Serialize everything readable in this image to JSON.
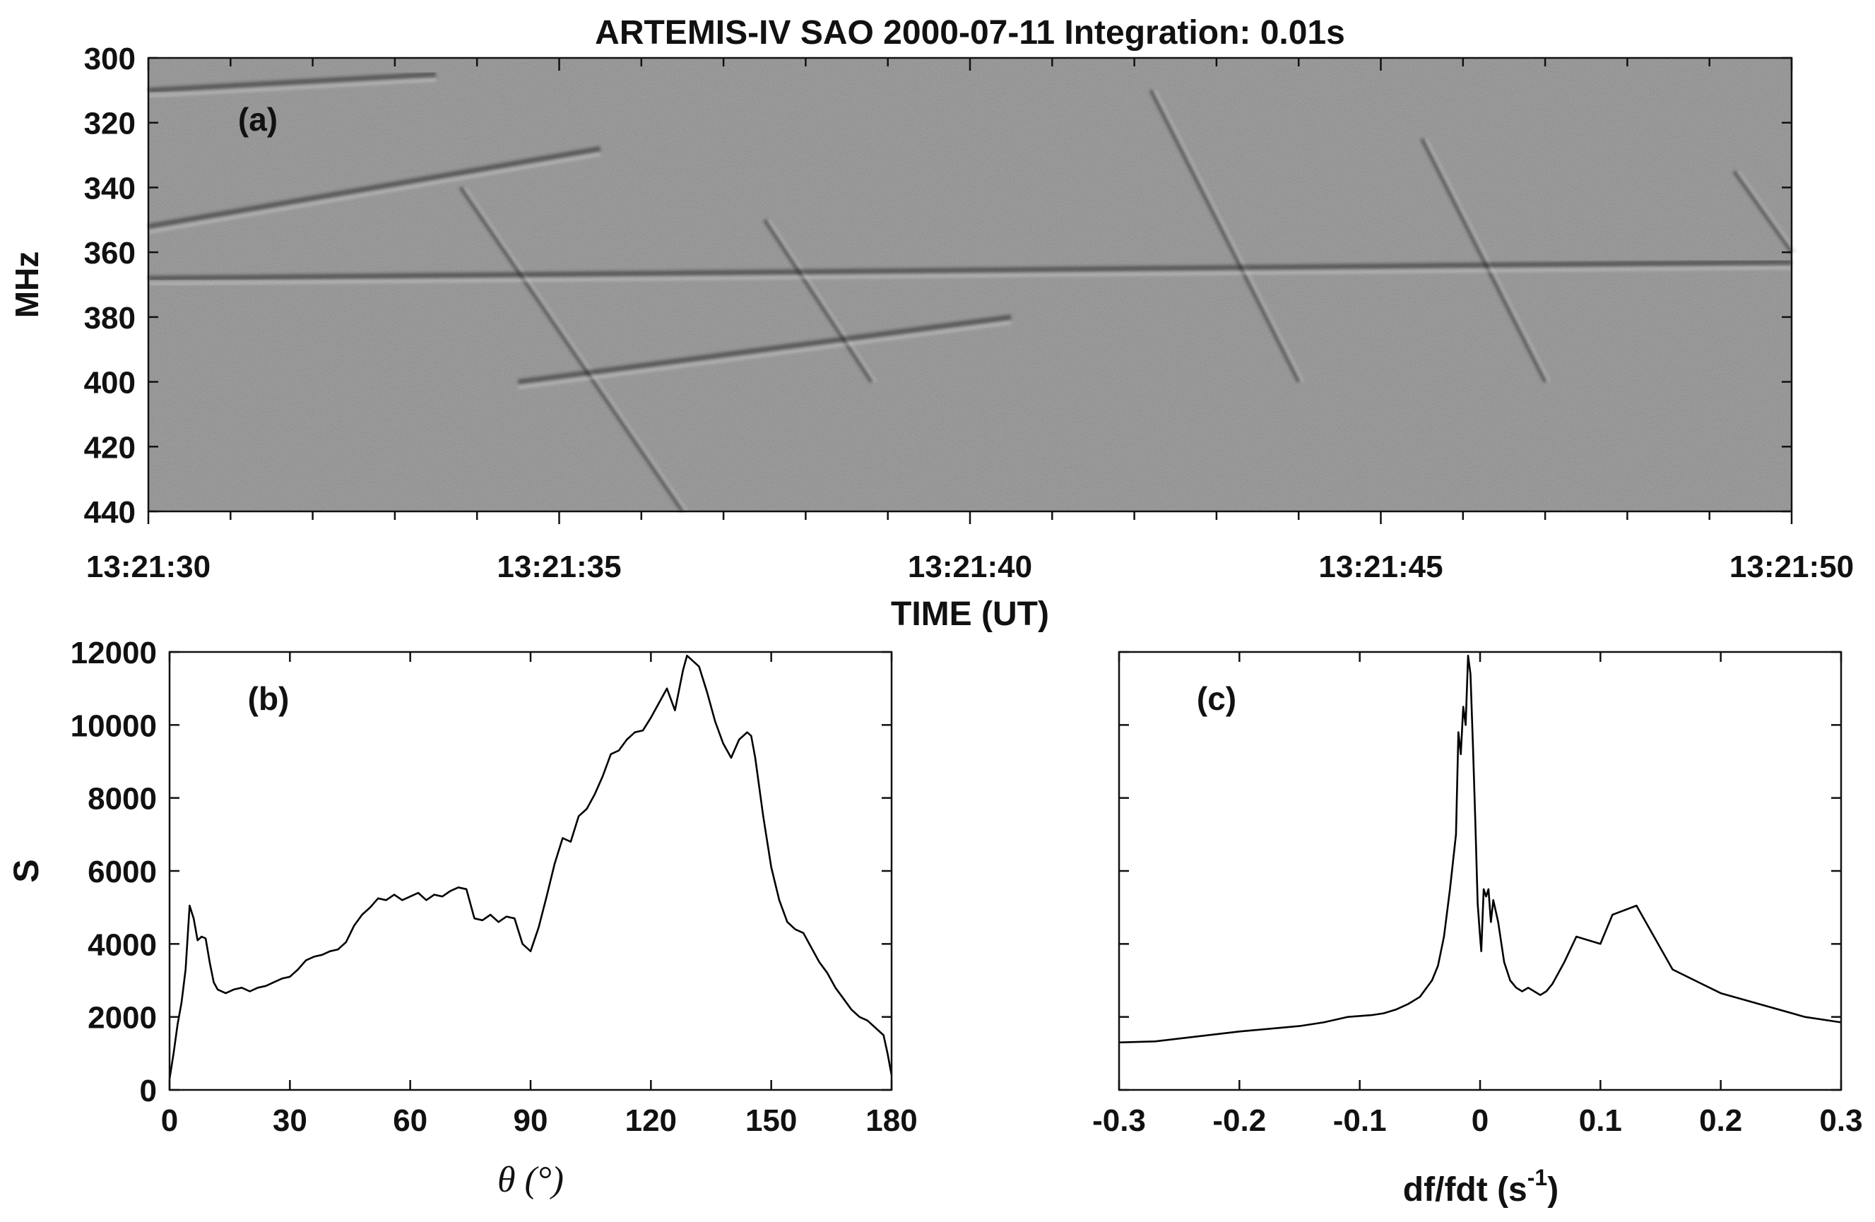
{
  "colors": {
    "axis": "#111111",
    "line": "#000000",
    "spectrogram_bg": "#8c8c8c"
  },
  "chart_data": [
    {
      "panel": "(a)",
      "type": "heatmap",
      "title": "ARTEMIS-IV  SAO 2000-07-11   Integration: 0.01s",
      "xlabel": "TIME (UT)",
      "ylabel": "MHz",
      "x_ticks": [
        "13:21:30",
        "13:21:35",
        "13:21:40",
        "13:21:45",
        "13:21:50"
      ],
      "y_ticks": [
        "300",
        "320",
        "340",
        "360",
        "380",
        "400",
        "420",
        "440"
      ],
      "xlim": [
        "13:21:30",
        "13:21:50"
      ],
      "ylim": [
        440,
        300
      ],
      "colormap": "gray",
      "features": [
        {
          "kind": "drift",
          "t_start": 3.8,
          "f_start": 340,
          "t_end": 6.5,
          "f_end": 440
        },
        {
          "kind": "drift",
          "t_start": 7.5,
          "f_start": 350,
          "t_end": 8.8,
          "f_end": 400
        },
        {
          "kind": "drift",
          "t_start": 12.2,
          "f_start": 310,
          "t_end": 14.0,
          "f_end": 400
        },
        {
          "kind": "drift",
          "t_start": 15.5,
          "f_start": 325,
          "t_end": 17.0,
          "f_end": 400
        },
        {
          "kind": "drift",
          "t_start": 19.3,
          "f_start": 335,
          "t_end": 20.0,
          "f_end": 360
        },
        {
          "kind": "lane",
          "t_start": 0.0,
          "f_start": 368,
          "t_end": 20.0,
          "f_end": 363
        },
        {
          "kind": "lane",
          "t_start": 0.0,
          "f_start": 352,
          "t_end": 5.5,
          "f_end": 328
        },
        {
          "kind": "lane",
          "t_start": 4.5,
          "f_start": 400,
          "t_end": 10.5,
          "f_end": 380
        },
        {
          "kind": "lane",
          "t_start": 0.0,
          "f_start": 310,
          "t_end": 3.5,
          "f_end": 305
        }
      ],
      "grid": false
    },
    {
      "panel": "(b)",
      "type": "line",
      "xlabel": "θ (°)",
      "ylabel": "S",
      "x_ticks": [
        "0",
        "30",
        "60",
        "90",
        "120",
        "150",
        "180"
      ],
      "y_ticks": [
        "0",
        "2000",
        "4000",
        "6000",
        "8000",
        "10000",
        "12000"
      ],
      "xlim": [
        0,
        180
      ],
      "ylim": [
        0,
        12000
      ],
      "series": [
        {
          "x": [
            0,
            1,
            2,
            3,
            4,
            5,
            6,
            7,
            8,
            9,
            10,
            11,
            12,
            14,
            16,
            18,
            20,
            22,
            24,
            26,
            28,
            30,
            32,
            34,
            36,
            38,
            40,
            42,
            44,
            46,
            48,
            50,
            52,
            54,
            56,
            58,
            60,
            62,
            64,
            66,
            68,
            70,
            72,
            74,
            76,
            78,
            80,
            82,
            84,
            86,
            88,
            90,
            92,
            94,
            96,
            98,
            100,
            102,
            104,
            106,
            108,
            110,
            112,
            114,
            116,
            118,
            120,
            122,
            124,
            126,
            128,
            129,
            130,
            132,
            134,
            136,
            138,
            140,
            142,
            144,
            145,
            146,
            148,
            150,
            152,
            154,
            156,
            158,
            160,
            162,
            164,
            166,
            168,
            170,
            172,
            174,
            176,
            178,
            179,
            180
          ],
          "y": [
            300,
            1000,
            1800,
            2400,
            3300,
            5050,
            4700,
            4100,
            4200,
            4150,
            3500,
            2950,
            2750,
            2650,
            2750,
            2800,
            2700,
            2800,
            2850,
            2950,
            3050,
            3100,
            3300,
            3550,
            3650,
            3700,
            3800,
            3850,
            4050,
            4500,
            4800,
            5000,
            5250,
            5200,
            5350,
            5200,
            5300,
            5400,
            5200,
            5350,
            5300,
            5450,
            5550,
            5500,
            4700,
            4650,
            4800,
            4600,
            4750,
            4700,
            4000,
            3800,
            4450,
            5300,
            6200,
            6900,
            6800,
            7500,
            7700,
            8100,
            8600,
            9200,
            9300,
            9600,
            9800,
            9850,
            10200,
            10600,
            11000,
            10400,
            11500,
            11900,
            11800,
            11600,
            10900,
            10100,
            9500,
            9100,
            9600,
            9800,
            9700,
            9100,
            7500,
            6100,
            5200,
            4600,
            4400,
            4300,
            3900,
            3500,
            3200,
            2800,
            2500,
            2200,
            2000,
            1900,
            1700,
            1500,
            1000,
            400
          ]
        }
      ],
      "grid": false
    },
    {
      "panel": "(c)",
      "type": "line",
      "xlabel": "df/fdt (s",
      "xlabel_superscript": "-1",
      "xlabel_suffix": ")",
      "ylabel": "",
      "x_ticks": [
        "-0.3",
        "-0.2",
        "-0.1",
        "0",
        "0.1",
        "0.2",
        "0.3"
      ],
      "xlim": [
        -0.3,
        0.3
      ],
      "ylim": [
        0,
        12000
      ],
      "series": [
        {
          "x": [
            -0.3,
            -0.27,
            -0.2,
            -0.15,
            -0.13,
            -0.11,
            -0.09,
            -0.08,
            -0.07,
            -0.06,
            -0.05,
            -0.04,
            -0.035,
            -0.03,
            -0.025,
            -0.02,
            -0.018,
            -0.016,
            -0.014,
            -0.012,
            -0.01,
            -0.008,
            -0.006,
            -0.004,
            -0.002,
            0,
            0.001,
            0.003,
            0.005,
            0.007,
            0.009,
            0.011,
            0.015,
            0.02,
            0.025,
            0.03,
            0.035,
            0.04,
            0.045,
            0.05,
            0.055,
            0.06,
            0.07,
            0.08,
            0.1,
            0.11,
            0.13,
            0.16,
            0.2,
            0.27,
            0.3
          ],
          "y": [
            1300,
            1330,
            1600,
            1750,
            1850,
            2000,
            2050,
            2100,
            2200,
            2350,
            2550,
            3000,
            3400,
            4200,
            5500,
            7000,
            9800,
            9200,
            10500,
            10000,
            11900,
            11400,
            9500,
            7400,
            5100,
            4200,
            3800,
            5500,
            5300,
            5500,
            4600,
            5200,
            4600,
            3500,
            3000,
            2800,
            2700,
            2800,
            2700,
            2600,
            2700,
            2900,
            3500,
            4200,
            4000,
            4800,
            5050,
            3300,
            2650,
            2000,
            1850
          ]
        }
      ],
      "grid": false
    }
  ]
}
